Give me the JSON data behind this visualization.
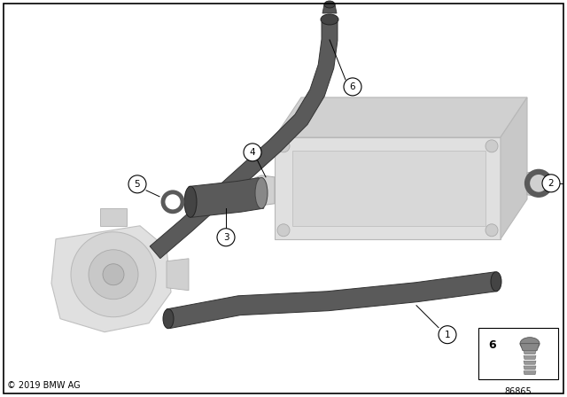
{
  "bg_color": "#ffffff",
  "copyright": "© 2019 BMW AG",
  "part_number": "86865",
  "part_color": "#5a5a5a",
  "ghost_face": "#dcdcdc",
  "ghost_edge": "#b8b8b8",
  "ghost_face2": "#c8c8c8",
  "ghost_face3": "#e8e8e8"
}
